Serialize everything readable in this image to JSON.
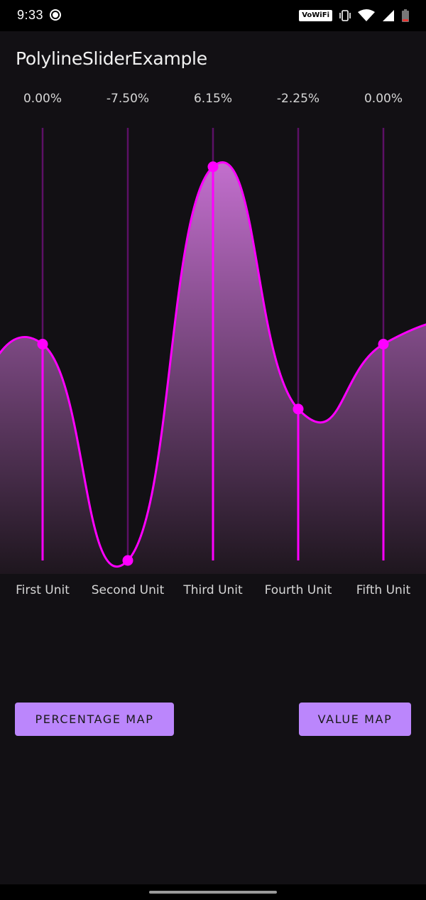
{
  "status_bar": {
    "time": "9:33",
    "wifi_badge": "VoWiFi",
    "icons": [
      "record-icon",
      "vibrate-icon",
      "wifi-icon",
      "signal-icon",
      "battery-icon"
    ]
  },
  "app": {
    "title": "PolylineSliderExample"
  },
  "slider": {
    "value_labels": [
      "0.00%",
      "-7.50%",
      "6.15%",
      "-2.25%",
      "0.00%"
    ],
    "unit_labels": [
      "First Unit",
      "Second Unit",
      "Third Unit",
      "Fourth Unit",
      "Fifth Unit"
    ]
  },
  "chart_data": {
    "type": "line",
    "categories": [
      "First Unit",
      "Second Unit",
      "Third Unit",
      "Fourth Unit",
      "Fifth Unit"
    ],
    "series": [
      {
        "values": [
          0.0,
          -7.5,
          6.15,
          -2.25,
          0.0
        ]
      }
    ],
    "ylim": [
      -7.5,
      7.5
    ],
    "colors": {
      "curve": "#ff00ff",
      "fill_top": "#c36fce",
      "fill_bottom": "#1e161e",
      "track": "#5c1066",
      "handle": "#ff00ff"
    }
  },
  "buttons": {
    "percentage_map": "PERCENTAGE MAP",
    "value_map": "VALUE MAP"
  },
  "theme": {
    "background": "#121014",
    "button": "#bb86fc"
  }
}
